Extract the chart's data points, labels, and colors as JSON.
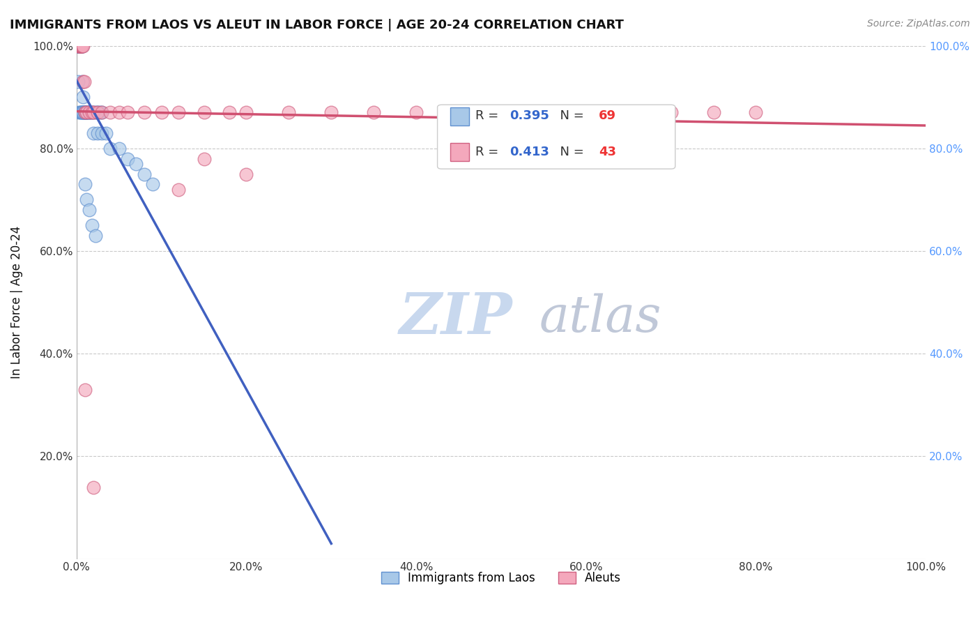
{
  "title": "IMMIGRANTS FROM LAOS VS ALEUT IN LABOR FORCE | AGE 20-24 CORRELATION CHART",
  "source": "Source: ZipAtlas.com",
  "ylabel": "In Labor Force | Age 20-24",
  "xlim": [
    0.0,
    1.0
  ],
  "ylim": [
    0.0,
    1.0
  ],
  "laos_R": 0.395,
  "laos_N": 69,
  "aleut_R": 0.413,
  "aleut_N": 43,
  "laos_color": "#A8C8E8",
  "aleut_color": "#F4A8BC",
  "laos_edge_color": "#6090D0",
  "aleut_edge_color": "#D06080",
  "laos_line_color": "#4060C0",
  "aleut_line_color": "#D05070",
  "background_color": "#FFFFFF",
  "grid_color": "#BBBBBB",
  "title_color": "#111111",
  "axis_label_color": "#111111",
  "right_ytick_color": "#5599FF",
  "source_color": "#888888",
  "legend_R_color": "#3366CC",
  "legend_N_color": "#EE3333",
  "watermark_zip_color": "#C8D8EE",
  "watermark_atlas_color": "#C0C8D8",
  "laos_x": [
    0.002,
    0.002,
    0.002,
    0.003,
    0.003,
    0.003,
    0.003,
    0.003,
    0.003,
    0.004,
    0.004,
    0.004,
    0.004,
    0.005,
    0.005,
    0.005,
    0.006,
    0.006,
    0.007,
    0.007,
    0.007,
    0.008,
    0.008,
    0.008,
    0.009,
    0.009,
    0.01,
    0.01,
    0.011,
    0.011,
    0.012,
    0.013,
    0.014,
    0.015,
    0.016,
    0.017,
    0.018,
    0.02,
    0.022,
    0.024,
    0.026,
    0.028,
    0.03,
    0.002,
    0.003,
    0.004,
    0.005,
    0.006,
    0.007,
    0.008,
    0.009,
    0.01,
    0.011,
    0.012,
    0.02,
    0.025,
    0.03,
    0.035,
    0.04,
    0.05,
    0.06,
    0.07,
    0.08,
    0.09,
    0.01,
    0.012,
    0.015,
    0.018,
    0.022
  ],
  "laos_y": [
    1.0,
    1.0,
    1.0,
    1.0,
    1.0,
    1.0,
    1.0,
    1.0,
    1.0,
    1.0,
    1.0,
    1.0,
    1.0,
    1.0,
    1.0,
    1.0,
    1.0,
    1.0,
    1.0,
    1.0,
    0.93,
    0.9,
    0.87,
    0.87,
    0.87,
    0.87,
    0.87,
    0.87,
    0.87,
    0.87,
    0.87,
    0.87,
    0.87,
    0.87,
    0.87,
    0.87,
    0.87,
    0.87,
    0.87,
    0.87,
    0.87,
    0.87,
    0.87,
    0.93,
    0.87,
    0.87,
    0.87,
    0.87,
    0.87,
    0.87,
    0.87,
    0.87,
    0.87,
    0.87,
    0.83,
    0.83,
    0.83,
    0.83,
    0.8,
    0.8,
    0.78,
    0.77,
    0.75,
    0.73,
    0.73,
    0.7,
    0.68,
    0.65,
    0.63
  ],
  "aleut_x": [
    0.002,
    0.003,
    0.003,
    0.004,
    0.004,
    0.005,
    0.005,
    0.006,
    0.006,
    0.007,
    0.008,
    0.008,
    0.009,
    0.01,
    0.012,
    0.015,
    0.018,
    0.02,
    0.025,
    0.03,
    0.04,
    0.05,
    0.06,
    0.08,
    0.1,
    0.12,
    0.15,
    0.18,
    0.2,
    0.25,
    0.3,
    0.35,
    0.4,
    0.5,
    0.6,
    0.7,
    0.75,
    0.8,
    0.15,
    0.2,
    0.12,
    0.01,
    0.02
  ],
  "aleut_y": [
    1.0,
    1.0,
    1.0,
    1.0,
    1.0,
    1.0,
    1.0,
    1.0,
    1.0,
    1.0,
    1.0,
    0.93,
    0.93,
    0.87,
    0.87,
    0.87,
    0.87,
    0.87,
    0.87,
    0.87,
    0.87,
    0.87,
    0.87,
    0.87,
    0.87,
    0.87,
    0.87,
    0.87,
    0.87,
    0.87,
    0.87,
    0.87,
    0.87,
    0.87,
    0.87,
    0.87,
    0.87,
    0.87,
    0.78,
    0.75,
    0.72,
    0.33,
    0.14
  ]
}
